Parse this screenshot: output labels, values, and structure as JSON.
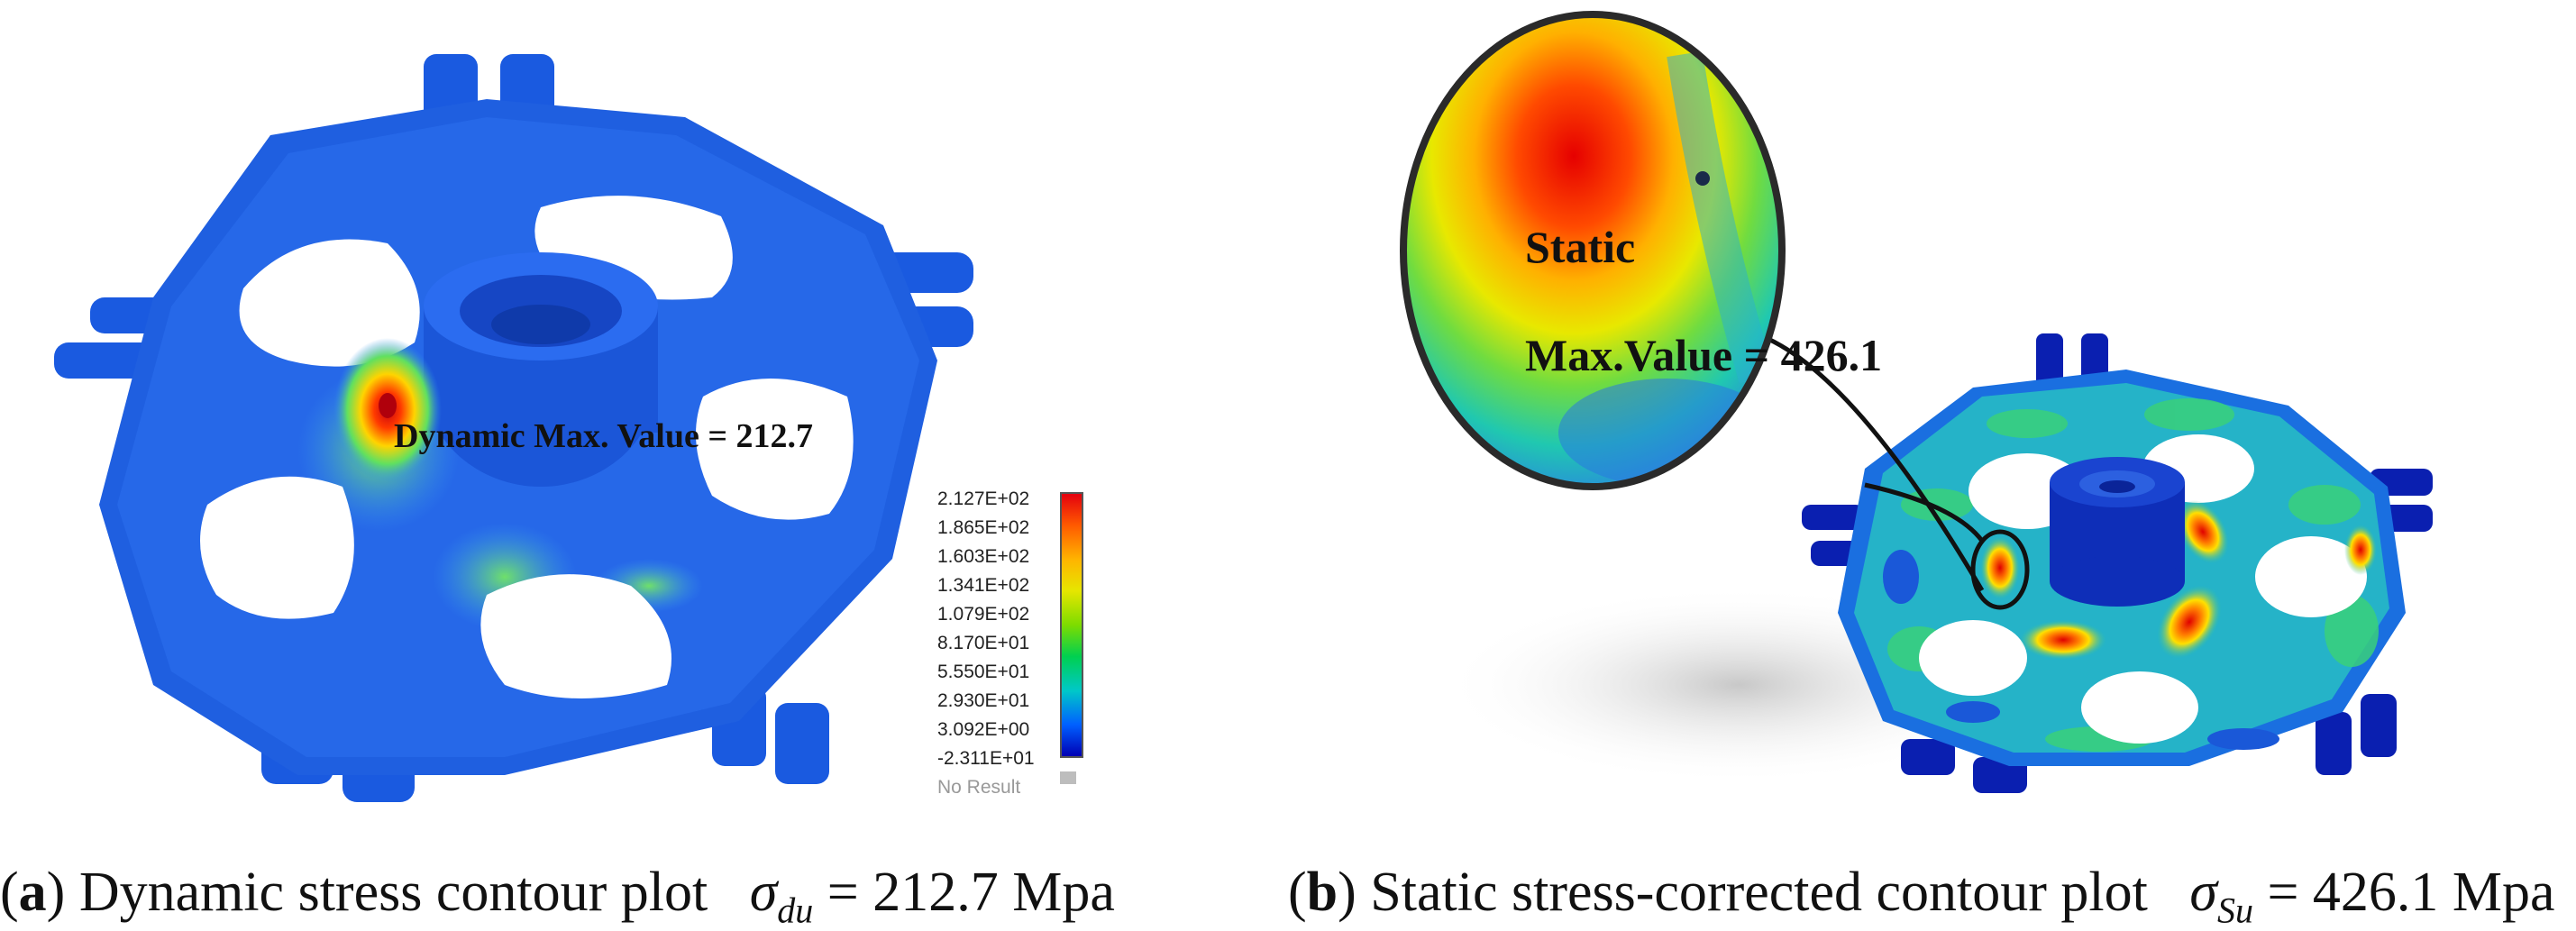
{
  "panel_a": {
    "annotation": "Dynamic Max. Value =  212.7",
    "legend": {
      "values": [
        "2.127E+02",
        "1.865E+02",
        "1.603E+02",
        "1.341E+02",
        "1.079E+02",
        "8.170E+01",
        "5.550E+01",
        "2.930E+01",
        "3.092E+00",
        "-2.311E+01"
      ],
      "no_result": "No Result"
    },
    "caption": {
      "letter": "a",
      "text": " Dynamic stress contour plot",
      "symbol": "σ",
      "subscript": "du",
      "value": " = 212.7 Mpa"
    }
  },
  "panel_b": {
    "annotation_line1": "Static",
    "annotation_line2": "Max.Value = 426.1",
    "caption": {
      "letter": "b",
      "text": " Static stress-corrected contour plot",
      "symbol": "σ",
      "subscript": "Su",
      "value": " = 426.1 Mpa"
    }
  },
  "colors": {
    "plate_blue": "#1f5fe0",
    "plate_dark_blue": "#0a2fa8",
    "hotspot_red": "#e3000f",
    "hotspot_yellow": "#ffd400",
    "mid_green": "#3fd47a"
  }
}
